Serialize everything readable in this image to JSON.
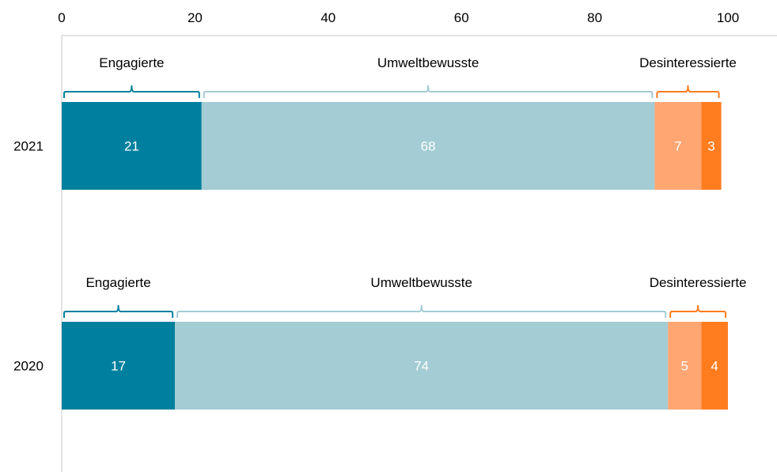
{
  "chart_data": {
    "type": "bar",
    "orientation": "horizontal",
    "stacked": true,
    "xlim": [
      0,
      100
    ],
    "x_ticks": [
      0,
      20,
      40,
      60,
      80,
      100
    ],
    "x_tick_labels": [
      "0",
      "20",
      "40",
      "60",
      "80",
      "100"
    ],
    "x_axis_position": "top",
    "grid": false,
    "legend": "none",
    "categories": [
      "2021",
      "2020"
    ],
    "series": [
      {
        "values": [
          21,
          17
        ],
        "color": "#00809e"
      },
      {
        "values": [
          68,
          74
        ],
        "color": "#a3ccd4"
      },
      {
        "values": [
          7,
          5
        ],
        "color": "#ffa672"
      },
      {
        "values": [
          3,
          4
        ],
        "color": "#ff7c1f"
      }
    ],
    "bar_labels": [
      [
        "21",
        "68",
        "7",
        "3"
      ],
      [
        "17",
        "74",
        "5",
        "4"
      ]
    ],
    "groups": [
      {
        "label": "Engagierte",
        "series_indices": [
          0
        ],
        "color": "#00809e"
      },
      {
        "label": "Umweltbewusste",
        "series_indices": [
          1
        ],
        "color": "#a3ccd4"
      },
      {
        "label": "Desinteressierte",
        "series_indices": [
          2,
          3
        ],
        "color": "#ff7c1f"
      }
    ],
    "axis_color": "#c8c8c8",
    "label_color": "#ffffff"
  }
}
